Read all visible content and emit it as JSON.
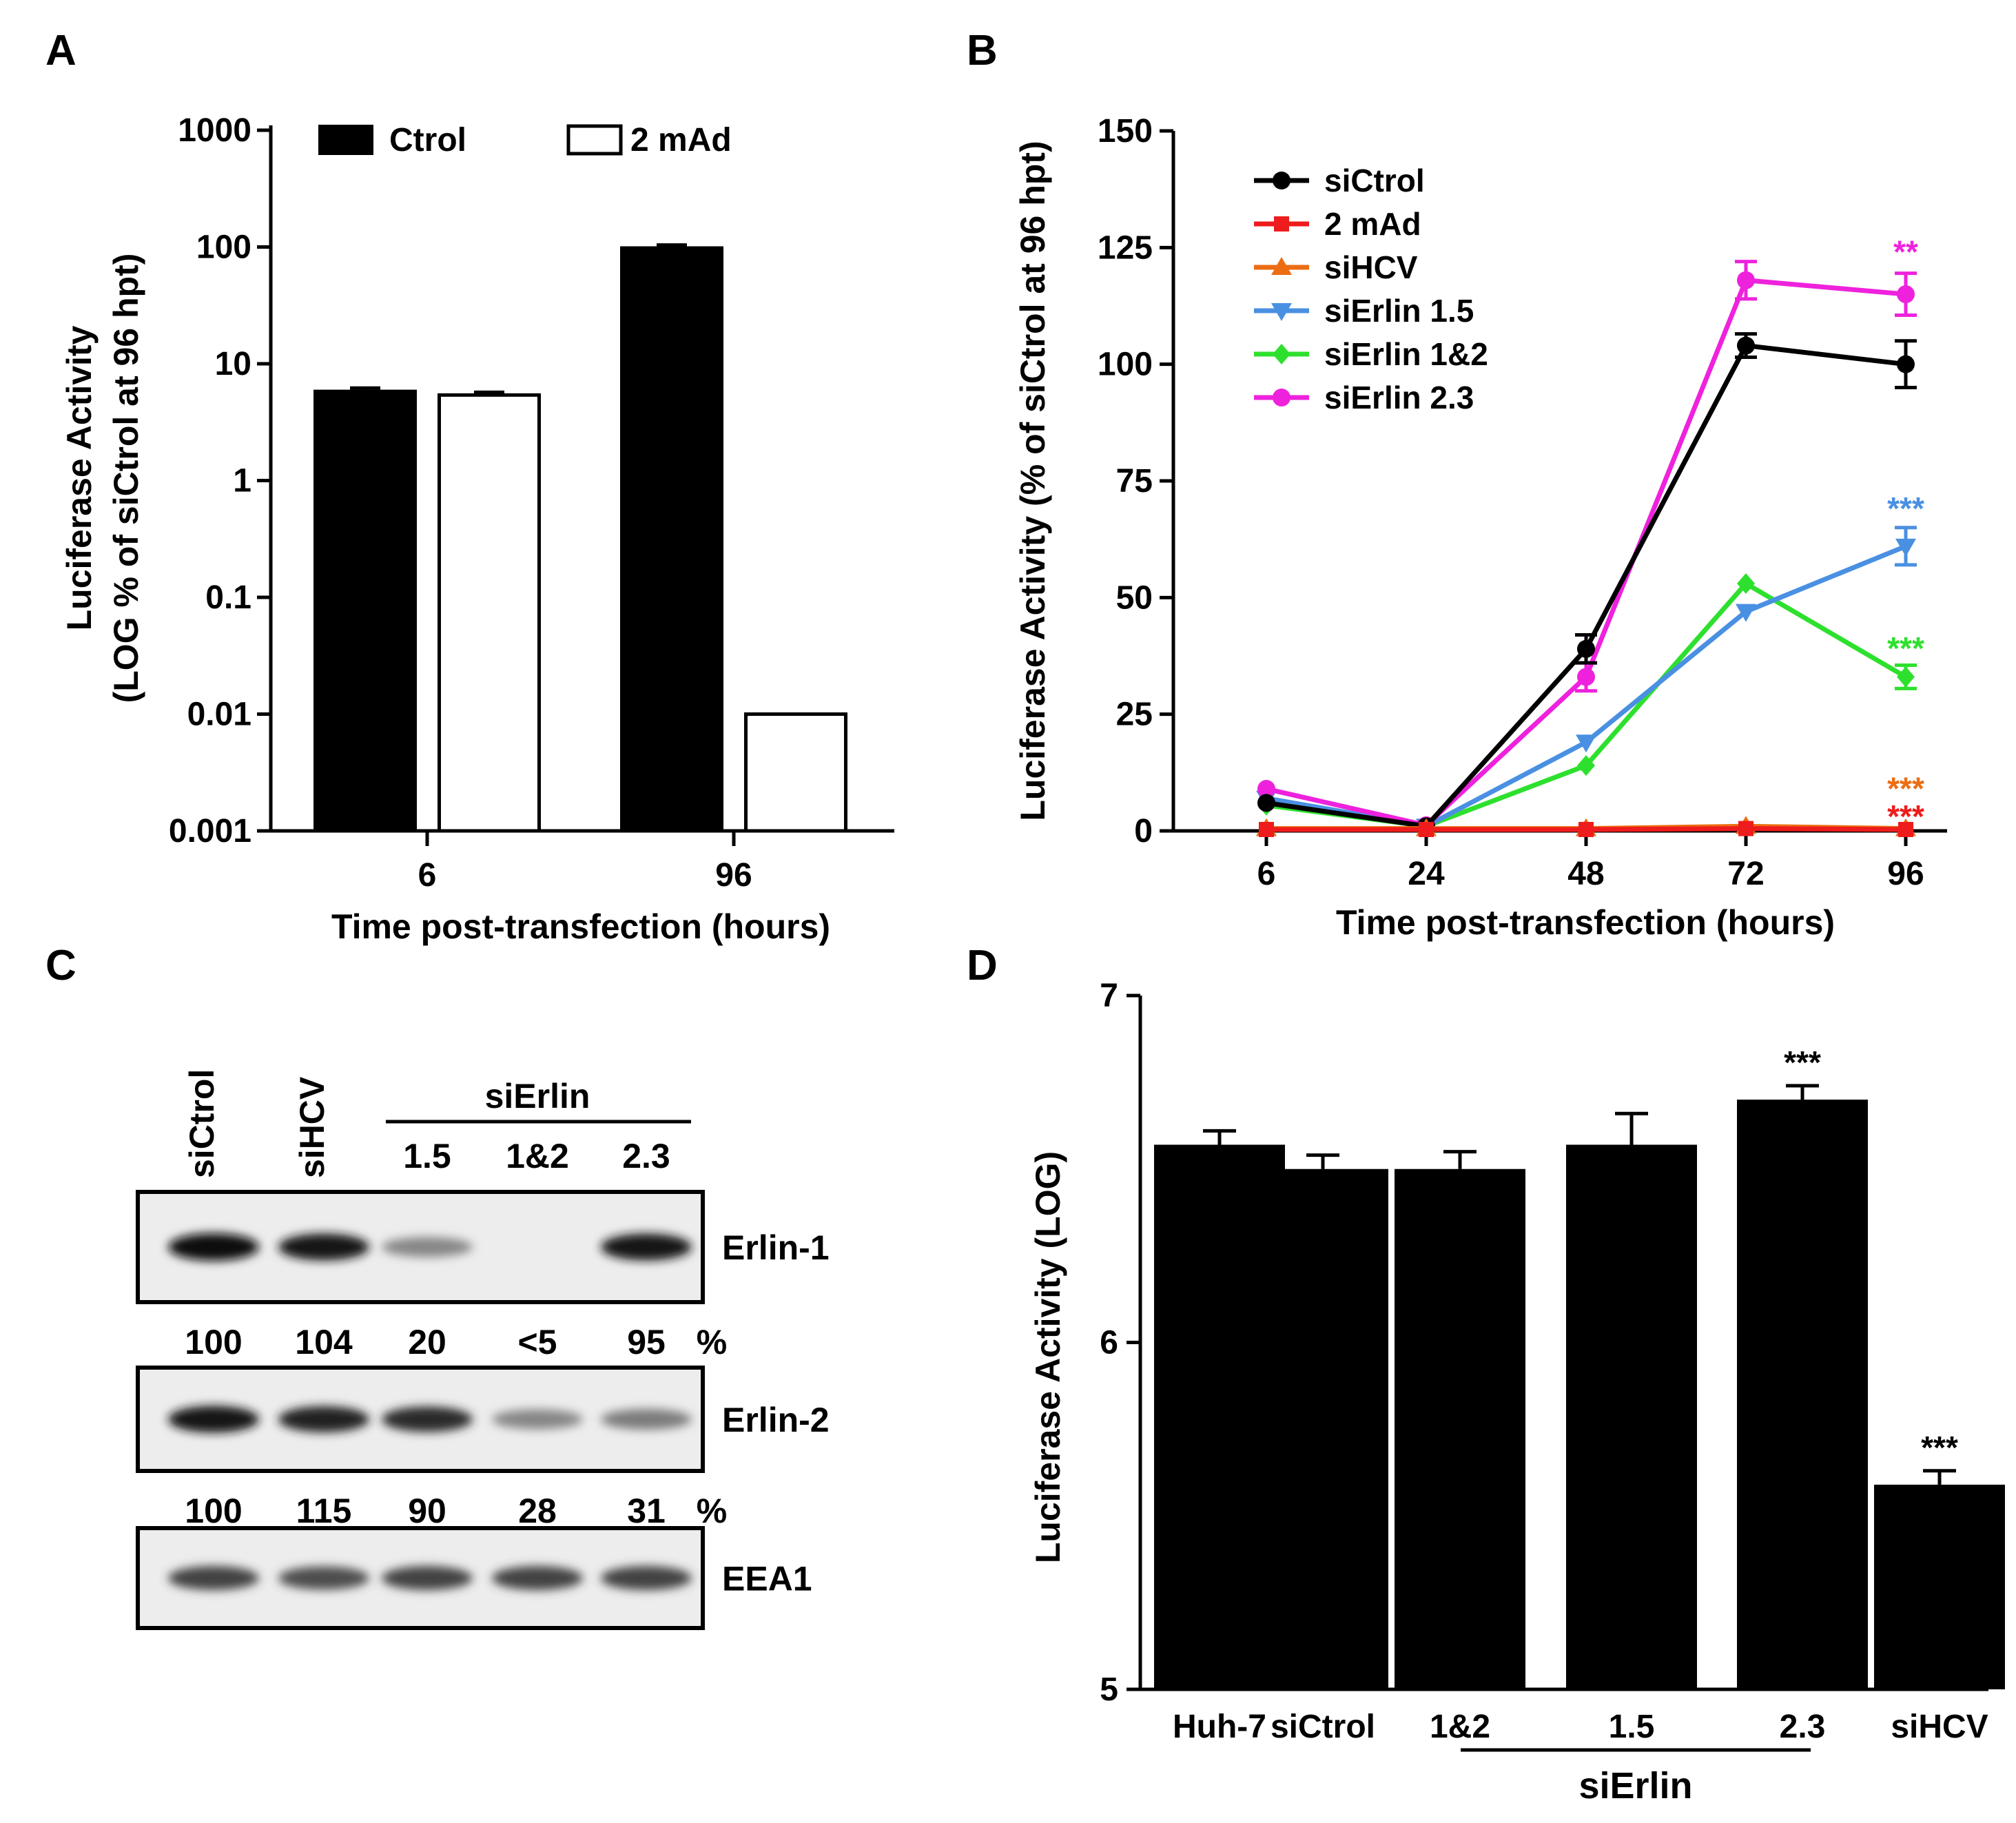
{
  "panels": {
    "A": "A",
    "B": "B",
    "C": "C",
    "D": "D"
  },
  "chart_data": [
    {
      "panel": "A",
      "type": "bar",
      "scale": "log",
      "categories": [
        "6",
        "96"
      ],
      "series": [
        {
          "name": "Ctrol",
          "values": [
            5.8,
            98
          ],
          "errors": [
            0.4,
            6
          ],
          "color": "#000000",
          "fill": "solid"
        },
        {
          "name": "2 mAd",
          "values": [
            5.4,
            0.01
          ],
          "errors": [
            0.3,
            0
          ],
          "color": "#000000",
          "fill": "open"
        }
      ],
      "ylim": [
        0.001,
        1000
      ],
      "yticks": [
        {
          "value": 1000,
          "label": "1000"
        },
        {
          "value": 100,
          "label": "100"
        },
        {
          "value": 10,
          "label": "10"
        },
        {
          "value": 1,
          "label": "1"
        },
        {
          "value": 0.1,
          "label": "0.1"
        },
        {
          "value": 0.01,
          "label": "0.01"
        },
        {
          "value": 0.001,
          "label": "0.001"
        }
      ],
      "ylabel_lines": [
        "Luciferase Activity",
        "(LOG % of siCtrol at 96 hpt)"
      ],
      "xlabel": "Time post-transfection (hours)",
      "legend": "top"
    },
    {
      "panel": "B",
      "type": "line",
      "x": [
        "6",
        "24",
        "48",
        "72",
        "96"
      ],
      "series": [
        {
          "name": "siCtrol",
          "color": "#000000",
          "marker": "circle",
          "values": [
            6,
            1,
            39,
            104,
            100
          ],
          "errors": [
            0,
            0,
            3,
            2.5,
            5
          ]
        },
        {
          "name": "2 mAd",
          "color": "#ee1c1c",
          "marker": "square",
          "values": [
            0.3,
            0.3,
            0.3,
            0.5,
            0.3
          ],
          "errors": [
            0,
            0,
            0,
            0,
            0
          ]
        },
        {
          "name": "siHCV",
          "color": "#ec6d13",
          "marker": "triangle-up",
          "values": [
            0.5,
            0.5,
            0.5,
            1,
            0.5
          ],
          "errors": [
            0,
            0,
            0,
            0,
            0
          ]
        },
        {
          "name": "siErlin 1.5",
          "color": "#4a90e2",
          "marker": "triangle-down",
          "values": [
            7,
            1,
            19,
            47,
            61
          ],
          "errors": [
            0,
            0,
            0,
            0,
            4
          ]
        },
        {
          "name": "siErlin 1&2",
          "color": "#2ee02e",
          "marker": "diamond",
          "values": [
            5.5,
            1,
            14,
            53,
            33
          ],
          "errors": [
            0,
            0,
            0,
            0,
            2.5
          ]
        },
        {
          "name": "siErlin 2.3",
          "color": "#ee22dd",
          "marker": "circle",
          "values": [
            9,
            1.2,
            33,
            118,
            115
          ],
          "errors": [
            0,
            0,
            3,
            4,
            4.5
          ]
        }
      ],
      "ylim": [
        0,
        150
      ],
      "yticks": [
        "0",
        "25",
        "50",
        "75",
        "100",
        "125",
        "150"
      ],
      "ylabel": "Luciferase Activity (% of siCtrol at 96 hpt)",
      "xlabel": "Time post-transfection (hours)",
      "annotations": [
        {
          "text": "**",
          "color": "#ee22dd",
          "x": "96",
          "y": 125
        },
        {
          "text": "***",
          "color": "#4a90e2",
          "x": "96",
          "y": 70
        },
        {
          "text": "***",
          "color": "#2ee02e",
          "x": "96",
          "y": 40
        },
        {
          "text": "***",
          "color": "#ec6d13",
          "x": "96",
          "y": 10
        },
        {
          "text": "***",
          "color": "#ee1c1c",
          "x": "96",
          "y": 4
        }
      ],
      "legend": "top-left"
    },
    {
      "panel": "D",
      "type": "bar",
      "categories": [
        "Huh-7",
        "siCtrol",
        "1&2",
        "1.5",
        "2.3",
        "siHCV"
      ],
      "values": [
        6.57,
        6.5,
        6.5,
        6.57,
        6.7,
        5.59
      ],
      "errors": [
        0.04,
        0.04,
        0.05,
        0.09,
        0.04,
        0.04
      ],
      "annotations": [
        {
          "category": "2.3",
          "text": "***"
        },
        {
          "category": "siHCV",
          "text": "***"
        }
      ],
      "ylim": [
        5,
        7
      ],
      "yticks": [
        "5",
        "6",
        "7"
      ],
      "ylabel": "Luciferase Activity (LOG)",
      "group_label": "siErlin",
      "group_members": [
        "1&2",
        "1.5",
        "2.3"
      ]
    }
  ],
  "blot": {
    "lane_headers_rotated": [
      "siCtrol",
      "siHCV"
    ],
    "group_label": "siErlin",
    "group_lanes": [
      "1.5",
      "1&2",
      "2.3"
    ],
    "rows": [
      {
        "name": "Erlin-1",
        "intensities": [
          1.0,
          0.95,
          0.45,
          0.0,
          0.95
        ],
        "quant": [
          "100",
          "104",
          "20",
          "<5",
          "95"
        ],
        "unit": "%"
      },
      {
        "name": "Erlin-2",
        "intensities": [
          0.95,
          0.9,
          0.85,
          0.45,
          0.5
        ],
        "quant": [
          "100",
          "115",
          "90",
          "28",
          "31"
        ],
        "unit": "%"
      },
      {
        "name": "EEA1",
        "intensities": [
          0.75,
          0.7,
          0.75,
          0.75,
          0.75
        ],
        "quant": [],
        "unit": ""
      }
    ]
  }
}
